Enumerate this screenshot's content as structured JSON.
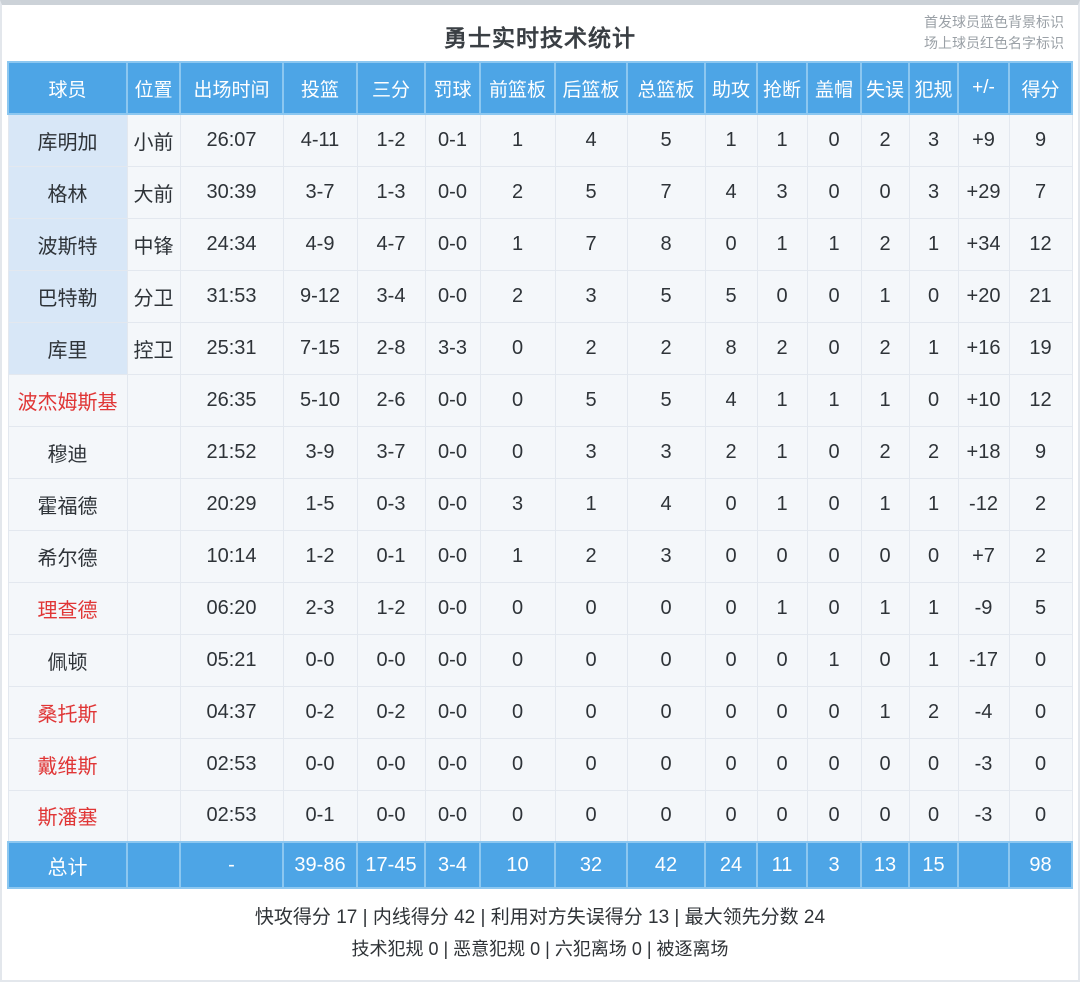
{
  "page": {
    "title": "勇士实时技术统计",
    "legend_line1": "首发球员蓝色背景标识",
    "legend_line2": "场上球员红色名字标识"
  },
  "colors": {
    "header_blue": "#4da5e6",
    "starter_name_bg": "#d8e7f7",
    "oncourt_name_red": "#e03636",
    "cell_bg": "#f4f7fa"
  },
  "chart_data": {
    "type": "table",
    "title": "勇士实时技术统计",
    "columns": [
      "球员",
      "位置",
      "出场时间",
      "投篮",
      "三分",
      "罚球",
      "前篮板",
      "后篮板",
      "总篮板",
      "助攻",
      "抢断",
      "盖帽",
      "失误",
      "犯规",
      "+/-",
      "得分"
    ],
    "rows": [
      {
        "name": "库明加",
        "starter": true,
        "oncourt": false,
        "values": [
          "小前",
          "26:07",
          "4-11",
          "1-2",
          "0-1",
          "1",
          "4",
          "5",
          "1",
          "1",
          "0",
          "2",
          "3",
          "+9",
          "9"
        ]
      },
      {
        "name": "格林",
        "starter": true,
        "oncourt": false,
        "values": [
          "大前",
          "30:39",
          "3-7",
          "1-3",
          "0-0",
          "2",
          "5",
          "7",
          "4",
          "3",
          "0",
          "0",
          "3",
          "+29",
          "7"
        ]
      },
      {
        "name": "波斯特",
        "starter": true,
        "oncourt": false,
        "values": [
          "中锋",
          "24:34",
          "4-9",
          "4-7",
          "0-0",
          "1",
          "7",
          "8",
          "0",
          "1",
          "1",
          "2",
          "1",
          "+34",
          "12"
        ]
      },
      {
        "name": "巴特勒",
        "starter": true,
        "oncourt": false,
        "values": [
          "分卫",
          "31:53",
          "9-12",
          "3-4",
          "0-0",
          "2",
          "3",
          "5",
          "5",
          "0",
          "0",
          "1",
          "0",
          "+20",
          "21"
        ]
      },
      {
        "name": "库里",
        "starter": true,
        "oncourt": false,
        "values": [
          "控卫",
          "25:31",
          "7-15",
          "2-8",
          "3-3",
          "0",
          "2",
          "2",
          "8",
          "2",
          "0",
          "2",
          "1",
          "+16",
          "19"
        ]
      },
      {
        "name": "波杰姆斯基",
        "starter": false,
        "oncourt": true,
        "values": [
          "",
          "26:35",
          "5-10",
          "2-6",
          "0-0",
          "0",
          "5",
          "5",
          "4",
          "1",
          "1",
          "1",
          "0",
          "+10",
          "12"
        ]
      },
      {
        "name": "穆迪",
        "starter": false,
        "oncourt": false,
        "values": [
          "",
          "21:52",
          "3-9",
          "3-7",
          "0-0",
          "0",
          "3",
          "3",
          "2",
          "1",
          "0",
          "2",
          "2",
          "+18",
          "9"
        ]
      },
      {
        "name": "霍福德",
        "starter": false,
        "oncourt": false,
        "values": [
          "",
          "20:29",
          "1-5",
          "0-3",
          "0-0",
          "3",
          "1",
          "4",
          "0",
          "1",
          "0",
          "1",
          "1",
          "-12",
          "2"
        ]
      },
      {
        "name": "希尔德",
        "starter": false,
        "oncourt": false,
        "values": [
          "",
          "10:14",
          "1-2",
          "0-1",
          "0-0",
          "1",
          "2",
          "3",
          "0",
          "0",
          "0",
          "0",
          "0",
          "+7",
          "2"
        ]
      },
      {
        "name": "理查德",
        "starter": false,
        "oncourt": true,
        "values": [
          "",
          "06:20",
          "2-3",
          "1-2",
          "0-0",
          "0",
          "0",
          "0",
          "0",
          "1",
          "0",
          "1",
          "1",
          "-9",
          "5"
        ]
      },
      {
        "name": "佩顿",
        "starter": false,
        "oncourt": false,
        "values": [
          "",
          "05:21",
          "0-0",
          "0-0",
          "0-0",
          "0",
          "0",
          "0",
          "0",
          "0",
          "1",
          "0",
          "1",
          "-17",
          "0"
        ]
      },
      {
        "name": "桑托斯",
        "starter": false,
        "oncourt": true,
        "values": [
          "",
          "04:37",
          "0-2",
          "0-2",
          "0-0",
          "0",
          "0",
          "0",
          "0",
          "0",
          "0",
          "1",
          "2",
          "-4",
          "0"
        ]
      },
      {
        "name": "戴维斯",
        "starter": false,
        "oncourt": true,
        "values": [
          "",
          "02:53",
          "0-0",
          "0-0",
          "0-0",
          "0",
          "0",
          "0",
          "0",
          "0",
          "0",
          "0",
          "0",
          "-3",
          "0"
        ]
      },
      {
        "name": "斯潘塞",
        "starter": false,
        "oncourt": true,
        "values": [
          "",
          "02:53",
          "0-1",
          "0-0",
          "0-0",
          "0",
          "0",
          "0",
          "0",
          "0",
          "0",
          "0",
          "0",
          "-3",
          "0"
        ]
      }
    ],
    "total": {
      "name": "总计",
      "values": [
        "",
        "-",
        "39-86",
        "17-45",
        "3-4",
        "10",
        "32",
        "42",
        "24",
        "11",
        "3",
        "13",
        "15",
        "",
        "98"
      ]
    }
  },
  "footer": {
    "line1": "快攻得分 17 | 内线得分 42 | 利用对方失误得分 13 | 最大领先分数 24",
    "line2": "技术犯规 0 | 恶意犯规 0 | 六犯离场 0 | 被逐离场"
  }
}
